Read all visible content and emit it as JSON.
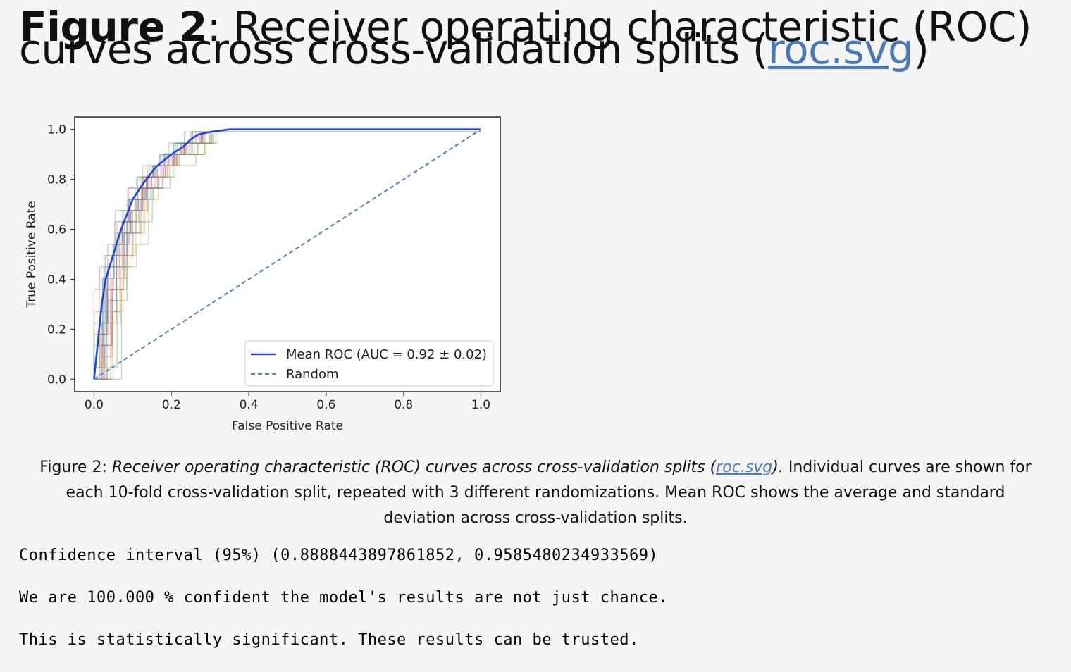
{
  "heading": {
    "label": "Figure 2",
    "title": ": Receiver operating characteristic (ROC) curves across cross-validation splits (",
    "link": "roc.svg",
    "close": ")"
  },
  "caption": {
    "label": "Figure 2",
    "sep": ": ",
    "italic": "Receiver operating characteristic (ROC) curves across cross-validation splits (",
    "link": "roc.svg",
    "italic_close": ").",
    "text": " Individual curves are shown for each 10-fold cross-validation split, repeated with 3 different randomizations. Mean ROC shows the average and standard deviation across cross-validation splits."
  },
  "output": {
    "line1": "Confidence interval (95%) (0.8888443897861852, 0.9585480234933569)",
    "line2": "We are 100.000 % confident the model's results are not just chance.",
    "line3": "This is statistically significant. These results can be trusted."
  },
  "chart_data": {
    "type": "line",
    "title": "",
    "xlabel": "False Positive Rate",
    "ylabel": "True Positive Rate",
    "xlim": [
      -0.05,
      1.05
    ],
    "ylim": [
      -0.05,
      1.05
    ],
    "xticks": [
      "0.0",
      "0.2",
      "0.4",
      "0.6",
      "0.8",
      "1.0"
    ],
    "yticks": [
      "0.0",
      "0.2",
      "0.4",
      "0.6",
      "0.8",
      "1.0"
    ],
    "grid": false,
    "legend_position": "lower-right",
    "fold_curve_count": 30,
    "series": [
      {
        "name": "Mean ROC (AUC = 0.92 ± 0.02)",
        "color": "#2a3fe0",
        "style": "solid",
        "x": [
          0,
          0.01,
          0.02,
          0.03,
          0.05,
          0.07,
          0.1,
          0.13,
          0.16,
          0.2,
          0.23,
          0.25,
          0.27,
          0.3,
          0.35,
          0.4,
          0.6,
          0.8,
          1.0
        ],
        "y": [
          0,
          0.15,
          0.3,
          0.4,
          0.5,
          0.6,
          0.72,
          0.79,
          0.85,
          0.9,
          0.93,
          0.96,
          0.98,
          0.99,
          1.0,
          1.0,
          1.0,
          1.0,
          1.0
        ]
      },
      {
        "name": "Random",
        "color": "#4a86c4",
        "style": "dashed",
        "x": [
          0,
          1
        ],
        "y": [
          0,
          1
        ]
      }
    ]
  }
}
